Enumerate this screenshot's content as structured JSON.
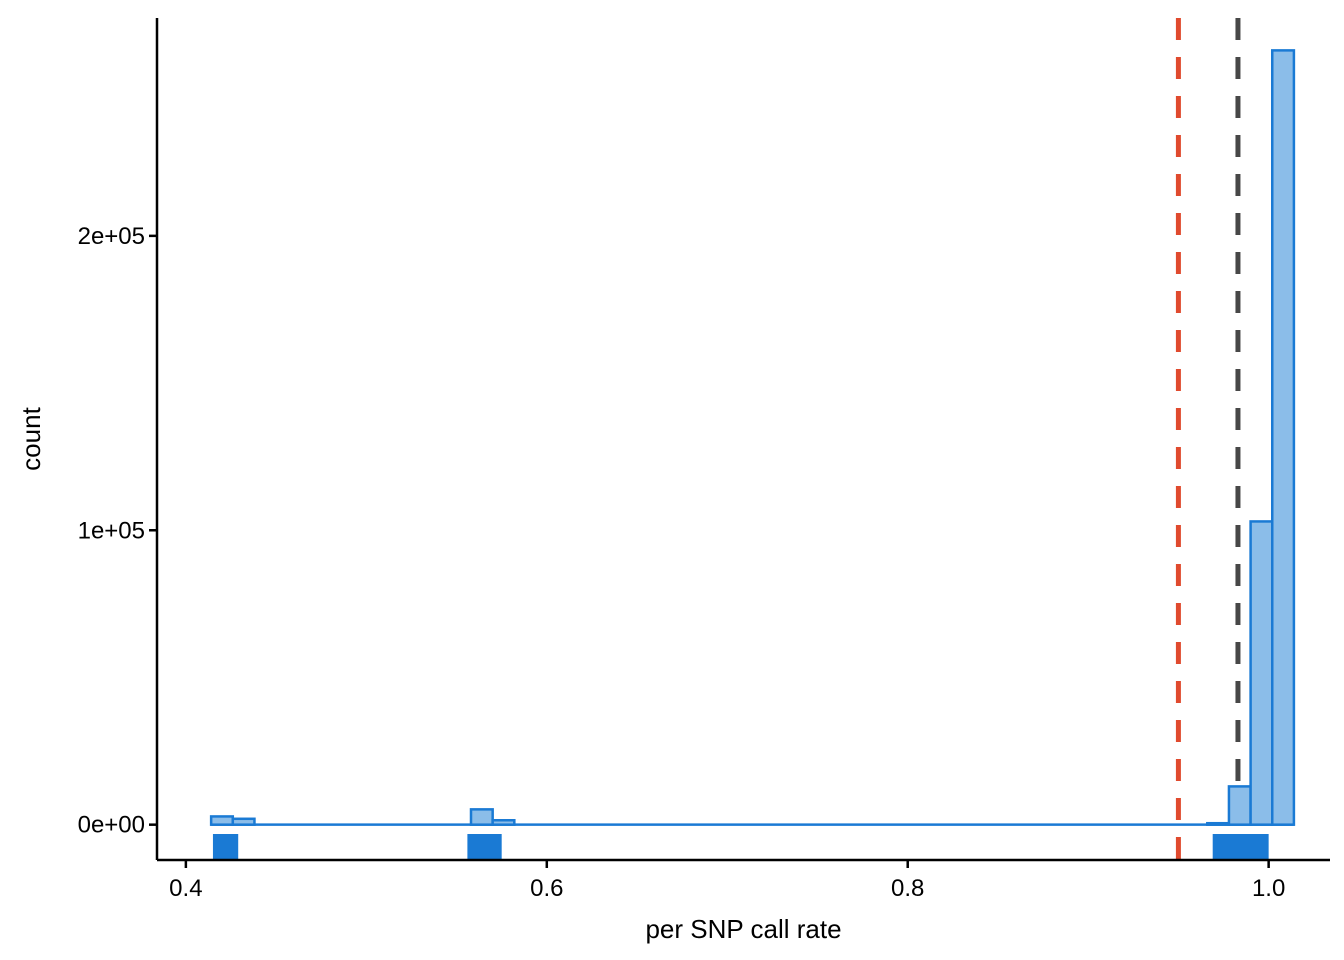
{
  "chart_data": {
    "type": "bar",
    "subtype": "histogram",
    "xlabel": "per SNP call rate",
    "ylabel": "count",
    "xlim": [
      0.384,
      1.034
    ],
    "ylim": [
      -12000,
      274000
    ],
    "x_ticks": [
      {
        "value": 0.4,
        "label": "0.4"
      },
      {
        "value": 0.6,
        "label": "0.6"
      },
      {
        "value": 0.8,
        "label": "0.8"
      },
      {
        "value": 1.0,
        "label": "1.0"
      }
    ],
    "y_ticks": [
      {
        "value": 0,
        "label": "0e+00"
      },
      {
        "value": 100000,
        "label": "1e+05"
      },
      {
        "value": 200000,
        "label": "2e+05"
      }
    ],
    "bin_width": 0.012,
    "bins": [
      {
        "x0": 0.414,
        "x1": 0.426,
        "count": 2800
      },
      {
        "x0": 0.426,
        "x1": 0.438,
        "count": 2000
      },
      {
        "x0": 0.558,
        "x1": 0.57,
        "count": 5200
      },
      {
        "x0": 0.57,
        "x1": 0.582,
        "count": 1500
      },
      {
        "x0": 0.966,
        "x1": 0.978,
        "count": 500
      },
      {
        "x0": 0.978,
        "x1": 0.99,
        "count": 13000
      },
      {
        "x0": 0.99,
        "x1": 1.002,
        "count": 103000
      },
      {
        "x0": 1.002,
        "x1": 1.014,
        "count": 263000
      }
    ],
    "baseline_range": [
      0.414,
      1.014
    ],
    "rug_segments": [
      {
        "x0": 0.415,
        "x1": 0.429
      },
      {
        "x0": 0.556,
        "x1": 0.575
      },
      {
        "x0": 0.969,
        "x1": 1.0
      }
    ],
    "reference_lines": [
      {
        "x": 0.95,
        "color": "#e04a2e",
        "style": "dashed"
      },
      {
        "x": 0.983,
        "color": "#474747",
        "style": "dashed"
      }
    ],
    "colors": {
      "bar_fill": "#8bbde9",
      "bar_stroke": "#1a7ad4",
      "rug": "#1a7ad4",
      "axis": "#000000"
    },
    "grid": false,
    "legend": "none"
  }
}
